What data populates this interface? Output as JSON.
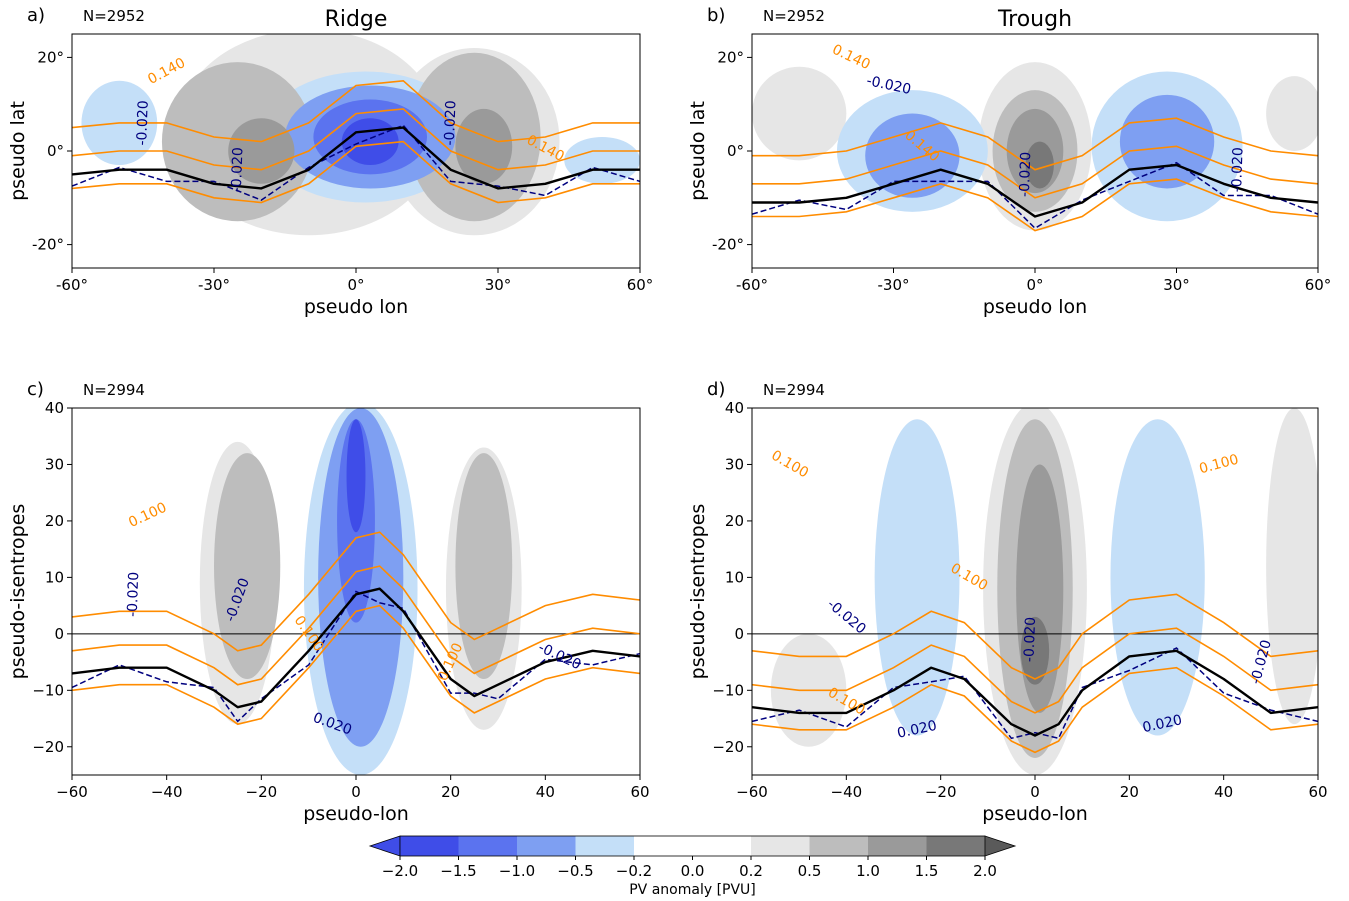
{
  "figure": {
    "colorbar": {
      "label": "PV anomaly [PVU]",
      "boundaries": [
        -2.0,
        -1.5,
        -1.0,
        -0.5,
        -0.2,
        0.0,
        0.2,
        0.5,
        1.0,
        1.5,
        2.0
      ],
      "tick_labels": [
        "−2.0",
        "−1.5",
        "−1.0",
        "−0.5",
        "−0.2",
        "0.0",
        "0.2",
        "0.5",
        "1.0",
        "1.5",
        "2.0"
      ],
      "colors": [
        "#3f4de8",
        "#5b73ef",
        "#7e9ff2",
        "#c4dff8",
        "#ffffff",
        "#ffffff",
        "#e6e6e6",
        "#bdbdbd",
        "#9a9a9a",
        "#787878"
      ],
      "extend_low_color": "#3f4de8",
      "extend_high_color": "#5a5a5a"
    },
    "contour_colors": {
      "orange": "#ff8c00",
      "navy": "#00007f",
      "black": "#000000"
    }
  },
  "chart_data": [
    {
      "panel": "a)",
      "type": "contour",
      "title": "Ridge",
      "n_label": "N=2952",
      "xlabel": "pseudo lon",
      "ylabel": "pseudo lat",
      "xlim": [
        -60,
        60
      ],
      "ylim": [
        -25,
        25
      ],
      "x_ticks": [
        -60,
        -30,
        0,
        30,
        60
      ],
      "x_tick_labels": [
        "-60°",
        "-30°",
        "0°",
        "30°",
        "60°"
      ],
      "y_ticks": [
        -20,
        0,
        20
      ],
      "y_tick_labels": [
        "-20°",
        "0°",
        "20°"
      ],
      "contour_labels": [
        {
          "text": "0.140",
          "color": "orange",
          "x": -40,
          "y": 17,
          "rotate": 28
        },
        {
          "text": "0.140",
          "color": "orange",
          "x": 40,
          "y": 0.5,
          "rotate": -28
        },
        {
          "text": "-0.020",
          "color": "navy",
          "x": -45,
          "y": 6,
          "rotate": 88
        },
        {
          "text": "-0.020",
          "color": "navy",
          "x": -25,
          "y": -4,
          "rotate": 88
        },
        {
          "text": "-0.020",
          "color": "navy",
          "x": 20,
          "y": 6,
          "rotate": 88
        }
      ],
      "black_curve": {
        "x": [
          -60,
          -50,
          -40,
          -30,
          -20,
          -10,
          0,
          10,
          20,
          30,
          40,
          50,
          60
        ],
        "y": [
          -5,
          -4,
          -4,
          -7,
          -8,
          -4,
          4,
          5,
          -4,
          -8,
          -7,
          -4,
          -4
        ]
      },
      "shading": [
        {
          "x": 2,
          "y": 3,
          "rx": 22,
          "ry": 14,
          "level": -0.5
        },
        {
          "x": 3,
          "y": 3,
          "rx": 18,
          "ry": 11,
          "level": -1.0
        },
        {
          "x": 3,
          "y": 3,
          "rx": 12,
          "ry": 8,
          "level": -1.5
        },
        {
          "x": 3,
          "y": 2,
          "rx": 6,
          "ry": 5,
          "level": -2.0
        },
        {
          "x": -50,
          "y": 6,
          "rx": 8,
          "ry": 9,
          "level": -0.5
        },
        {
          "x": 52,
          "y": -2,
          "rx": 8,
          "ry": 5,
          "level": -0.5
        },
        {
          "x": -25,
          "y": 2,
          "rx": 16,
          "ry": 17,
          "level": 0.5
        },
        {
          "x": -20,
          "y": 0,
          "rx": 7,
          "ry": 7,
          "level": 1.0
        },
        {
          "x": 25,
          "y": 3,
          "rx": 14,
          "ry": 18,
          "level": 0.5
        },
        {
          "x": 27,
          "y": 1,
          "rx": 6,
          "ry": 8,
          "level": 1.0
        },
        {
          "x": -10,
          "y": 4,
          "rx": 28,
          "ry": 22,
          "level": 0.2
        },
        {
          "x": 25,
          "y": 2,
          "rx": 18,
          "ry": 20,
          "level": 0.2
        }
      ]
    },
    {
      "panel": "b)",
      "type": "contour",
      "title": "Trough",
      "n_label": "N=2952",
      "xlabel": "pseudo lon",
      "ylabel": "pseudo lat",
      "xlim": [
        -60,
        60
      ],
      "ylim": [
        -25,
        25
      ],
      "x_ticks": [
        -60,
        -30,
        0,
        30,
        60
      ],
      "x_tick_labels": [
        "-60°",
        "-30°",
        "0°",
        "30°",
        "60°"
      ],
      "y_ticks": [
        -20,
        0,
        20
      ],
      "y_tick_labels": [
        "-20°",
        "0°",
        "20°"
      ],
      "contour_labels": [
        {
          "text": "0.140",
          "color": "orange",
          "x": -39,
          "y": 20,
          "rotate": -25
        },
        {
          "text": "-0.020",
          "color": "navy",
          "x": -31,
          "y": 14,
          "rotate": -12
        },
        {
          "text": "0.140",
          "color": "orange",
          "x": -24,
          "y": 1,
          "rotate": -40
        },
        {
          "text": "-0.020",
          "color": "navy",
          "x": -2,
          "y": -5,
          "rotate": 88
        },
        {
          "text": "-0.020",
          "color": "navy",
          "x": 43,
          "y": -4,
          "rotate": 88
        }
      ],
      "black_curve": {
        "x": [
          -60,
          -50,
          -40,
          -30,
          -20,
          -10,
          0,
          10,
          20,
          30,
          40,
          50,
          60
        ],
        "y": [
          -11,
          -11,
          -10,
          -7,
          -4,
          -7,
          -14,
          -11,
          -4,
          -3,
          -7,
          -10,
          -11
        ]
      },
      "shading": [
        {
          "x": -26,
          "y": 0,
          "rx": 16,
          "ry": 13,
          "level": -0.5
        },
        {
          "x": -26,
          "y": -1,
          "rx": 10,
          "ry": 9,
          "level": -1.0
        },
        {
          "x": 28,
          "y": 1,
          "rx": 16,
          "ry": 16,
          "level": -0.5
        },
        {
          "x": 28,
          "y": 2,
          "rx": 10,
          "ry": 10,
          "level": -1.0
        },
        {
          "x": 0,
          "y": 1,
          "rx": 12,
          "ry": 18,
          "level": 0.2
        },
        {
          "x": 0,
          "y": 0,
          "rx": 9,
          "ry": 13,
          "level": 0.5
        },
        {
          "x": 0,
          "y": 0,
          "rx": 6,
          "ry": 9,
          "level": 1.0
        },
        {
          "x": 1,
          "y": -3,
          "rx": 3,
          "ry": 5,
          "level": 1.5
        },
        {
          "x": -50,
          "y": 8,
          "rx": 10,
          "ry": 10,
          "level": 0.2
        },
        {
          "x": 55,
          "y": 8,
          "rx": 6,
          "ry": 8,
          "level": 0.2
        }
      ]
    },
    {
      "panel": "c)",
      "type": "contour",
      "title": "",
      "n_label": "N=2994",
      "xlabel": "pseudo-lon",
      "ylabel": "pseudo-isentropes",
      "xlim": [
        -60,
        60
      ],
      "ylim": [
        -25,
        40
      ],
      "x_ticks": [
        -60,
        -40,
        -20,
        0,
        20,
        40,
        60
      ],
      "x_tick_labels": [
        "−60",
        "−40",
        "−20",
        "0",
        "20",
        "40",
        "60"
      ],
      "y_ticks": [
        -20,
        -10,
        0,
        10,
        20,
        30,
        40
      ],
      "y_tick_labels": [
        "−20",
        "−10",
        "0",
        "10",
        "20",
        "30",
        "40"
      ],
      "contour_labels": [
        {
          "text": "0.100",
          "color": "orange",
          "x": -44,
          "y": 21,
          "rotate": 25
        },
        {
          "text": "-0.020",
          "color": "navy",
          "x": -47,
          "y": 7,
          "rotate": 88
        },
        {
          "text": "-0.020",
          "color": "navy",
          "x": -25,
          "y": 6,
          "rotate": 70
        },
        {
          "text": "0.100",
          "color": "orange",
          "x": -10,
          "y": 0,
          "rotate": -55
        },
        {
          "text": "0.100",
          "color": "orange",
          "x": 20,
          "y": -5,
          "rotate": 65
        },
        {
          "text": "0.020",
          "color": "navy",
          "x": -5,
          "y": -16,
          "rotate": -20
        },
        {
          "text": "-0.020",
          "color": "navy",
          "x": 43,
          "y": -4,
          "rotate": -25
        }
      ],
      "black_curve": {
        "x": [
          -60,
          -50,
          -40,
          -30,
          -25,
          -20,
          -10,
          0,
          5,
          10,
          20,
          25,
          30,
          40,
          50,
          60
        ],
        "y": [
          -7,
          -6,
          -6,
          -10,
          -13,
          -12,
          -3,
          7,
          8,
          4,
          -8,
          -11,
          -9,
          -5,
          -3,
          -4
        ]
      },
      "shading": [
        {
          "x": -25,
          "y": 9,
          "rx": 8,
          "ry": 25,
          "level": 0.2
        },
        {
          "x": -23,
          "y": 12,
          "rx": 7,
          "ry": 20,
          "level": 0.5
        },
        {
          "x": 27,
          "y": 8,
          "rx": 8,
          "ry": 25,
          "level": 0.2
        },
        {
          "x": 27,
          "y": 12,
          "rx": 6,
          "ry": 20,
          "level": 0.5
        },
        {
          "x": 0,
          "y": 8,
          "rx": 15,
          "ry": 35,
          "level": -0.2
        },
        {
          "x": 1,
          "y": 8,
          "rx": 12,
          "ry": 33,
          "level": -0.5
        },
        {
          "x": 1,
          "y": 10,
          "rx": 9,
          "ry": 30,
          "level": -1.0
        },
        {
          "x": 0,
          "y": 20,
          "rx": 4,
          "ry": 18,
          "level": -1.5
        },
        {
          "x": 0,
          "y": 28,
          "rx": 2,
          "ry": 10,
          "level": -2.0
        },
        {
          "x": 48,
          "y": 15,
          "rx": 10,
          "ry": 20,
          "level": -0.2
        },
        {
          "x": -50,
          "y": 10,
          "rx": 8,
          "ry": 12,
          "level": -0.2
        }
      ]
    },
    {
      "panel": "d)",
      "type": "contour",
      "title": "",
      "n_label": "N=2994",
      "xlabel": "pseudo-lon",
      "ylabel": "pseudo-isentropes",
      "xlim": [
        -60,
        60
      ],
      "ylim": [
        -25,
        40
      ],
      "x_ticks": [
        -60,
        -40,
        -20,
        0,
        20,
        40,
        60
      ],
      "x_tick_labels": [
        "−60",
        "−40",
        "−20",
        "0",
        "20",
        "40",
        "60"
      ],
      "y_ticks": [
        -20,
        -10,
        0,
        10,
        20,
        30,
        40
      ],
      "y_tick_labels": [
        "−20",
        "−10",
        "0",
        "10",
        "20",
        "30",
        "40"
      ],
      "contour_labels": [
        {
          "text": "0.100",
          "color": "orange",
          "x": -52,
          "y": 30,
          "rotate": -30
        },
        {
          "text": "0.100",
          "color": "orange",
          "x": 39,
          "y": 30,
          "rotate": 15
        },
        {
          "text": "0.100",
          "color": "orange",
          "x": -14,
          "y": 10,
          "rotate": -30
        },
        {
          "text": "-0.020",
          "color": "navy",
          "x": -40,
          "y": 3,
          "rotate": -40
        },
        {
          "text": "0.100",
          "color": "orange",
          "x": -40,
          "y": -12,
          "rotate": -30
        },
        {
          "text": "-0.020",
          "color": "navy",
          "x": -1,
          "y": -1,
          "rotate": 88
        },
        {
          "text": "0.020",
          "color": "navy",
          "x": -25,
          "y": -17,
          "rotate": 12
        },
        {
          "text": "0.020",
          "color": "navy",
          "x": 27,
          "y": -16,
          "rotate": 12
        },
        {
          "text": "-0.020",
          "color": "navy",
          "x": 48,
          "y": -5,
          "rotate": 75
        }
      ],
      "black_curve": {
        "x": [
          -60,
          -50,
          -40,
          -30,
          -22,
          -15,
          -5,
          0,
          5,
          10,
          20,
          30,
          40,
          50,
          60
        ],
        "y": [
          -13,
          -14,
          -14,
          -10,
          -6,
          -8,
          -16,
          -18,
          -16,
          -10,
          -4,
          -3,
          -8,
          -14,
          -13
        ]
      },
      "shading": [
        {
          "x": -26,
          "y": 8,
          "rx": 12,
          "ry": 30,
          "level": -0.2
        },
        {
          "x": -25,
          "y": 10,
          "rx": 9,
          "ry": 28,
          "level": -0.5
        },
        {
          "x": 27,
          "y": 8,
          "rx": 13,
          "ry": 32,
          "level": -0.2
        },
        {
          "x": 26,
          "y": 10,
          "rx": 10,
          "ry": 28,
          "level": -0.5
        },
        {
          "x": 0,
          "y": 8,
          "rx": 11,
          "ry": 33,
          "level": 0.2
        },
        {
          "x": 0,
          "y": 8,
          "rx": 8,
          "ry": 30,
          "level": 0.5
        },
        {
          "x": 1,
          "y": 8,
          "rx": 5,
          "ry": 22,
          "level": 1.0
        },
        {
          "x": 0,
          "y": -3,
          "rx": 3,
          "ry": 6,
          "level": 1.5
        },
        {
          "x": -48,
          "y": -10,
          "rx": 8,
          "ry": 10,
          "level": 0.2
        },
        {
          "x": 55,
          "y": 12,
          "rx": 6,
          "ry": 28,
          "level": 0.2
        }
      ]
    }
  ]
}
